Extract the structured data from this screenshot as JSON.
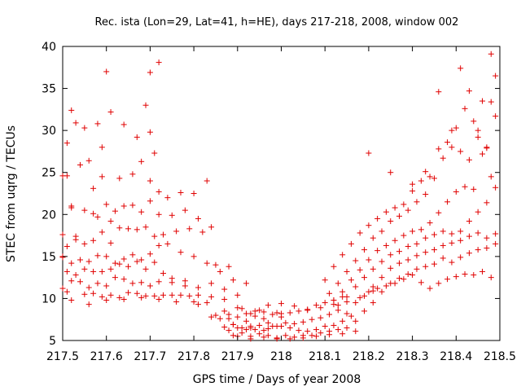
{
  "chart_data": {
    "type": "scatter",
    "title": "Rec. ista (Lon=29, Lat=41, h=HE), days 217-218, 2008, window 002",
    "xlabel": "GPS time / Days of year 2008",
    "ylabel": "STEC from uqrg / TECUs",
    "xlim": [
      217.5,
      218.5
    ],
    "ylim": [
      5,
      40
    ],
    "xticks": [
      217.5,
      217.6,
      217.7,
      217.8,
      217.9,
      218,
      218.1,
      218.2,
      218.3,
      218.4,
      218.5
    ],
    "xtick_labels": [
      "217.5",
      "217.6",
      "217.7",
      "217.8",
      "217.9",
      "218",
      "218.1",
      "218.2",
      "218.3",
      "218.4",
      "218.5"
    ],
    "yticks": [
      5,
      10,
      15,
      20,
      25,
      30,
      35,
      40
    ],
    "ytick_labels": [
      "5",
      "10",
      "15",
      "20",
      "25",
      "30",
      "35",
      "40"
    ],
    "grid": false,
    "marker": "+",
    "color": "#e00000",
    "series": [
      {
        "x": [
          217.51,
          217.52,
          217.53,
          217.55,
          217.56,
          217.58,
          217.59,
          217.6,
          217.61,
          217.64,
          217.67,
          217.69,
          217.7,
          217.7,
          217.71,
          217.72,
          217.5,
          217.51,
          217.52,
          217.54,
          217.57,
          217.59,
          217.61,
          217.63,
          217.66,
          217.68,
          217.7,
          217.72,
          217.74,
          217.77,
          217.8,
          217.83,
          217.5,
          217.52,
          217.53,
          217.55,
          217.57,
          217.58,
          217.6,
          217.62,
          217.64,
          217.66,
          217.68,
          217.7,
          217.72,
          217.75,
          217.78,
          217.81,
          217.84,
          217.5,
          217.51,
          217.53,
          217.55,
          217.57,
          217.59,
          217.61,
          217.63,
          217.65,
          217.67,
          217.69,
          217.71,
          217.73,
          217.76,
          217.79,
          217.82,
          217.85,
          217.88,
          217.5,
          217.52,
          217.54,
          217.56,
          217.58,
          217.6,
          217.62,
          217.64,
          217.66,
          217.68,
          217.7,
          217.72,
          217.74,
          217.77,
          217.8,
          217.83,
          217.86,
          217.89,
          217.92,
          217.51,
          217.53,
          217.55,
          217.57,
          217.59,
          217.61,
          217.63,
          217.65,
          217.67,
          217.69,
          217.71,
          217.73,
          217.75,
          217.78,
          217.81,
          217.84,
          217.87,
          217.9,
          217.5,
          217.52,
          217.54,
          217.56,
          217.58,
          217.6,
          217.62,
          217.64,
          217.66,
          217.68,
          217.7,
          217.72,
          217.75,
          217.78,
          217.81,
          217.84,
          217.87,
          217.9,
          217.93,
          217.51,
          217.55,
          217.59,
          217.63,
          217.67,
          217.71,
          217.75,
          217.79,
          217.83,
          217.87,
          217.91,
          217.95,
          217.99,
          217.52,
          217.56,
          217.6,
          217.64,
          217.68,
          217.72,
          217.76,
          217.8,
          217.84,
          217.88,
          217.92,
          217.96,
          218.0,
          217.57,
          217.61,
          217.65,
          217.69,
          217.73,
          217.77,
          217.81,
          217.85,
          217.89,
          217.93,
          217.97,
          217.86,
          217.88,
          217.9,
          217.92,
          217.94,
          217.96,
          217.98,
          218.0,
          218.02,
          218.04,
          218.06,
          218.08,
          218.1,
          218.12,
          218.14,
          217.87,
          217.89,
          217.91,
          217.93,
          217.95,
          217.97,
          217.99,
          218.01,
          218.03,
          218.05,
          218.07,
          218.09,
          218.11,
          218.13,
          217.88,
          217.9,
          217.92,
          217.94,
          217.96,
          217.98,
          218.0,
          218.02,
          218.04,
          218.06,
          218.08,
          218.1,
          218.12,
          218.14,
          218.16,
          217.89,
          217.91,
          217.93,
          217.95,
          217.97,
          217.99,
          218.01,
          218.03,
          218.05,
          218.07,
          218.09,
          218.11,
          218.13,
          218.15,
          217.9,
          217.93,
          217.96,
          217.99,
          218.02,
          218.05,
          218.08,
          218.11,
          218.14,
          218.17,
          217.94,
          217.97,
          218.0,
          218.03,
          218.06,
          218.09,
          218.12,
          218.15,
          218.18,
          218.21,
          218.1,
          218.12,
          218.14,
          218.16,
          218.18,
          218.2,
          218.22,
          218.24,
          218.26,
          218.28,
          218.3,
          218.32,
          218.34,
          218.36,
          218.38,
          218.4,
          218.42,
          218.44,
          218.46,
          218.48,
          218.11,
          218.13,
          218.15,
          218.17,
          218.19,
          218.21,
          218.23,
          218.25,
          218.27,
          218.29,
          218.31,
          218.33,
          218.35,
          218.37,
          218.39,
          218.41,
          218.43,
          218.45,
          218.47,
          218.49,
          218.12,
          218.14,
          218.16,
          218.18,
          218.2,
          218.22,
          218.24,
          218.26,
          218.28,
          218.3,
          218.32,
          218.34,
          218.36,
          218.38,
          218.4,
          218.42,
          218.44,
          218.46,
          218.48,
          218.13,
          218.15,
          218.17,
          218.19,
          218.21,
          218.23,
          218.25,
          218.27,
          218.29,
          218.31,
          218.33,
          218.35,
          218.37,
          218.39,
          218.41,
          218.43,
          218.45,
          218.47,
          218.49,
          218.15,
          218.17,
          218.19,
          218.21,
          218.23,
          218.25,
          218.27,
          218.29,
          218.31,
          218.33,
          218.35,
          218.37,
          218.39,
          218.41,
          218.43,
          218.45,
          218.47,
          218.49,
          218.17,
          218.19,
          218.21,
          218.23,
          218.25,
          218.27,
          218.29,
          218.31,
          218.33,
          218.35,
          218.37,
          218.39,
          218.41,
          218.43,
          218.45,
          218.47,
          218.49,
          218.2,
          218.22,
          218.24,
          218.26,
          218.28,
          218.3,
          218.32,
          218.34,
          218.36,
          218.38,
          218.4,
          218.42,
          218.44,
          218.46,
          218.48,
          218.2,
          218.25,
          218.3,
          218.33,
          218.36,
          218.39,
          218.41,
          218.43,
          218.45,
          218.47,
          218.48,
          218.49
        ],
        "y": [
          28.5,
          32.4,
          30.9,
          30.3,
          26.4,
          30.8,
          28,
          37,
          32.2,
          30.7,
          29.2,
          33,
          36.9,
          29.8,
          27.3,
          38.1,
          24.6,
          24.6,
          20.8,
          25.9,
          23.1,
          24.5,
          19.2,
          24.3,
          24.8,
          26.3,
          24,
          22.7,
          22,
          22.6,
          22.5,
          24,
          17.6,
          21,
          17.4,
          20.5,
          20.1,
          19.7,
          21.2,
          20.4,
          21,
          21.1,
          20.3,
          21.6,
          20,
          19.9,
          20.5,
          19.5,
          18.5,
          15,
          16.2,
          17,
          16.5,
          16.9,
          17.9,
          16.6,
          18.4,
          18.3,
          18.2,
          18.5,
          17.4,
          17.6,
          18,
          18.3,
          17.9,
          14,
          13.8,
          14.9,
          14.2,
          14.6,
          14.4,
          15.1,
          15,
          14.2,
          14.7,
          15.2,
          14.6,
          15.3,
          16.3,
          16.5,
          15.5,
          15,
          14.2,
          13.2,
          12.2,
          11.8,
          13.2,
          12.8,
          13.5,
          13.2,
          13.2,
          13.5,
          14.1,
          13.8,
          14.4,
          13.5,
          14.3,
          13,
          12.4,
          12.1,
          11.3,
          11.8,
          11.1,
          10.4,
          11.2,
          12.1,
          12,
          11.3,
          11.8,
          11.5,
          12.5,
          12.3,
          11.8,
          11.9,
          11.5,
          12,
          11.9,
          11.5,
          10.4,
          10.2,
          9.9,
          8.9,
          8.2,
          10.8,
          10.5,
          10.2,
          10.1,
          10.6,
          10.3,
          10.4,
          10.3,
          9.5,
          8.5,
          8.8,
          8.6,
          8.3,
          9.8,
          9.3,
          9.8,
          9.9,
          10.1,
          9.9,
          9.6,
          9.6,
          7.8,
          7.6,
          7.3,
          7.6,
          7.8,
          10.6,
          10.4,
          10.7,
          10.3,
          10.4,
          10.4,
          9.3,
          8,
          6.9,
          6.5,
          7.1,
          7.6,
          8.1,
          7.8,
          8.2,
          7.9,
          8.4,
          8.1,
          8.2,
          8.3,
          8.5,
          8.7,
          9.2,
          9.5,
          9.8,
          10.2,
          6.6,
          6.9,
          6.5,
          6.7,
          6.8,
          6.4,
          6.7,
          7.1,
          7,
          7.2,
          7.5,
          7.7,
          8.1,
          8.6,
          6.2,
          6.5,
          6.3,
          6.3,
          6.2,
          6.7,
          6.7,
          6.5,
          6.2,
          6.1,
          6.3,
          6.7,
          6.8,
          7.3,
          7.9,
          5.6,
          5.9,
          5.5,
          5.8,
          5.6,
          5.3,
          5.6,
          5.4,
          5.6,
          5.6,
          5.9,
          6.1,
          6.3,
          6.5,
          5.5,
          5.2,
          5.4,
          5.2,
          5.2,
          5.3,
          5.5,
          5.7,
          5.8,
          6.1,
          8.5,
          9.2,
          9.4,
          9.1,
          8.6,
          8.9,
          9.3,
          9.6,
          10.1,
          10.9,
          12.2,
          13.8,
          15.2,
          16.5,
          17.8,
          18.7,
          19.5,
          20.3,
          20.8,
          21.2,
          22.8,
          24,
          24.5,
          27.8,
          28.6,
          30.3,
          32.6,
          31.1,
          33.5,
          39.1,
          10.6,
          11.8,
          13.2,
          14.5,
          15.8,
          17.2,
          18,
          19.2,
          19.8,
          20.5,
          21.5,
          22.4,
          24.3,
          26.7,
          28,
          27.5,
          26.5,
          29.2,
          28,
          36.5,
          9.8,
          10.8,
          12.2,
          13.4,
          14.6,
          15.7,
          16.3,
          16.9,
          17.5,
          18,
          18.2,
          19,
          20.2,
          21.5,
          22.7,
          23.3,
          23,
          27.2,
          24.5,
          9.2,
          10.2,
          11.4,
          12.5,
          13.5,
          14.4,
          15.2,
          15.6,
          16.2,
          16.5,
          17.2,
          17.6,
          18,
          17.7,
          18,
          19.2,
          20.3,
          21.4,
          23.2,
          8.2,
          9.5,
          10.3,
          11.4,
          12.5,
          13.6,
          14.2,
          14.6,
          15.1,
          15.5,
          15.8,
          16.3,
          16.6,
          16.9,
          17.4,
          17.8,
          17.2,
          17.7,
          7.3,
          8.5,
          9.5,
          10.8,
          11.8,
          12.4,
          12.9,
          13.5,
          13.8,
          14.1,
          14.8,
          14.3,
          14.9,
          15.4,
          15.8,
          16,
          16.5,
          10.8,
          11.2,
          11.5,
          11.8,
          12.3,
          12.8,
          11.9,
          11.2,
          11.8,
          12.3,
          12.6,
          12.9,
          12.8,
          13.2,
          12.5,
          27.3,
          25,
          23.6,
          25.1,
          34.6,
          30,
          37.4,
          34.7,
          30,
          27.9,
          33.4,
          31.7
        ]
      }
    ]
  }
}
